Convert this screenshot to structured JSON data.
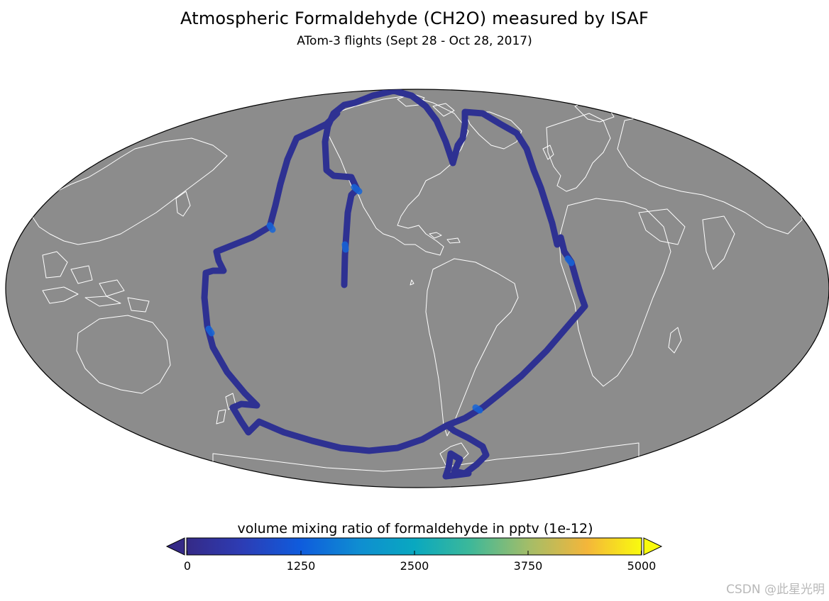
{
  "title": "Atmospheric Formaldehyde (CH2O) measured by ISAF",
  "subtitle": "ATom-3 flights (Sept 28 - Oct 28, 2017)",
  "map": {
    "projection": "Mollweide",
    "ocean_color": "#8c8c8c",
    "coastline_color": "#ffffff",
    "track_color": "#2e3192",
    "highlight_color": "#1565d8"
  },
  "colorbar": {
    "label": "volume mixing ratio of formaldehyde in pptv (1e-12)",
    "ticks": [
      "0",
      "1250",
      "2500",
      "3750",
      "5000"
    ],
    "range": [
      0,
      5000
    ],
    "colormap": "parula",
    "under_color": "#352a87",
    "over_color": "#f9fb0e"
  },
  "watermark": "CSDN @此星光明"
}
